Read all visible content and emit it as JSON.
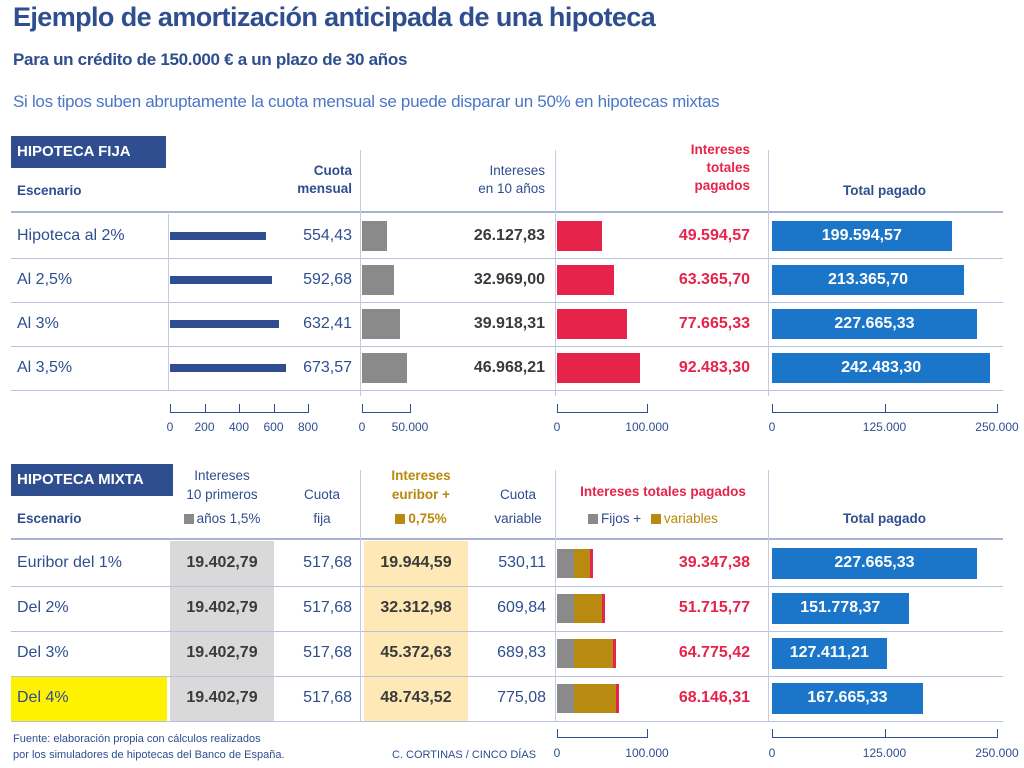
{
  "title": "Ejemplo de amortización anticipada de una hipoteca",
  "subtitle": "Para un crédito de 150.000 € a un plazo de 30 años",
  "lead": "Si los tipos suben abruptamente la cuota mensual se puede disparar un 50% en hipotecas mixtas",
  "source": {
    "line1": "Fuente: elaboración propia con cálculos realizados",
    "line2": "por los simuladores de hipotecas del Banco de España.",
    "credit": "C. CORTINAS / CINCO DÍAS"
  },
  "colors": {
    "navy": "#2e4e8f",
    "blue": "#1b75c8",
    "red": "#e6234b",
    "grey": "#8a8a8a",
    "gold": "#b88a10",
    "grey_fill": "#d9d9d9",
    "gold_fill": "#fde8b6",
    "highlight": "#fff200"
  },
  "chart_data": [
    {
      "type": "bar",
      "section": "HIPOTECA FIJA",
      "scenario_header": "Escenario",
      "categories": [
        "Hipoteca al 2%",
        "Al 2,5%",
        "Al 3%",
        "Al 3,5%"
      ],
      "headers": {
        "cuota": [
          "Cuota",
          "mensual"
        ],
        "intereses10": [
          "Intereses",
          "en 10 años"
        ],
        "intereses_totales": [
          "Intereses",
          "totales",
          "pagados"
        ],
        "total": "Total pagado"
      },
      "series": [
        {
          "name": "Cuota mensual",
          "values": [
            554.43,
            592.68,
            632.41,
            673.57
          ],
          "labels": [
            "554,43",
            "592,68",
            "632,41",
            "673,57"
          ],
          "xlim": [
            0,
            800
          ],
          "ticks": [
            "0",
            "200",
            "400",
            "600",
            "800"
          ]
        },
        {
          "name": "Intereses en 10 años",
          "values": [
            26127.83,
            32969.0,
            39918.31,
            46968.21
          ],
          "labels": [
            "26.127,83",
            "32.969,00",
            "39.918,31",
            "46.968,21"
          ],
          "xlim": [
            0,
            50000
          ],
          "ticks": [
            "0",
            "50.000"
          ]
        },
        {
          "name": "Intereses totales pagados",
          "values": [
            49594.57,
            63365.7,
            77665.33,
            92483.3
          ],
          "labels": [
            "49.594,57",
            "63.365,70",
            "77.665,33",
            "92.483,30"
          ],
          "xlim": [
            0,
            100000
          ],
          "ticks": [
            "0",
            "100.000"
          ]
        },
        {
          "name": "Total pagado",
          "values": [
            199594.57,
            213365.7,
            227665.33,
            242483.3
          ],
          "labels": [
            "199.594,57",
            "213.365,70",
            "227.665,33",
            "242.483,30"
          ],
          "xlim": [
            0,
            250000
          ],
          "ticks": [
            "0",
            "125.000",
            "250.000"
          ]
        }
      ]
    },
    {
      "type": "bar",
      "section": "HIPOTECA MIXTA",
      "scenario_header": "Escenario",
      "categories": [
        "Euribor del 1%",
        "Del 2%",
        "Del 3%",
        "Del 4%"
      ],
      "highlighted_category": "Del 4%",
      "headers": {
        "intereses10": [
          "Intereses",
          "10 primeros",
          "años 1,5%"
        ],
        "cuota_fija": [
          "Cuota",
          "fija"
        ],
        "intereses_euribor": [
          "Intereses",
          "euribor +",
          "0,75%"
        ],
        "cuota_variable": [
          "Cuota",
          "variable"
        ],
        "intereses_totales": "Intereses totales pagados",
        "legend_fijos": "Fijos +",
        "legend_variables": "variables",
        "total": "Total pagado"
      },
      "table": {
        "intereses10": [
          "19.402,79",
          "19.402,79",
          "19.402,79",
          "19.402,79"
        ],
        "cuota_fija": [
          "517,68",
          "517,68",
          "517,68",
          "517,68"
        ],
        "intereses_euribor": [
          "19.944,59",
          "32.312,98",
          "45.372,63",
          "48.743,52"
        ],
        "cuota_variable": [
          "530,11",
          "609,84",
          "689,83",
          "775,08"
        ]
      },
      "series": [
        {
          "name": "Intereses totales pagados",
          "stacked": true,
          "fijos": [
            19402.79,
            19402.79,
            19402.79,
            19402.79
          ],
          "variables": [
            19944.59,
            32312.98,
            45372.63,
            48743.52
          ],
          "values": [
            39347.38,
            51715.77,
            64775.42,
            68146.31
          ],
          "labels": [
            "39.347,38",
            "51.715,77",
            "64.775,42",
            "68.146,31"
          ],
          "xlim": [
            0,
            100000
          ],
          "ticks": [
            "0",
            "100.000"
          ]
        },
        {
          "name": "Total pagado",
          "values": [
            227665.33,
            151778.37,
            127411.21,
            167665.33
          ],
          "labels": [
            "227.665,33",
            "151.778,37",
            "127.411,21",
            "167.665,33"
          ],
          "xlim": [
            0,
            250000
          ],
          "ticks": [
            "0",
            "125.000",
            "250.000"
          ]
        }
      ]
    }
  ]
}
